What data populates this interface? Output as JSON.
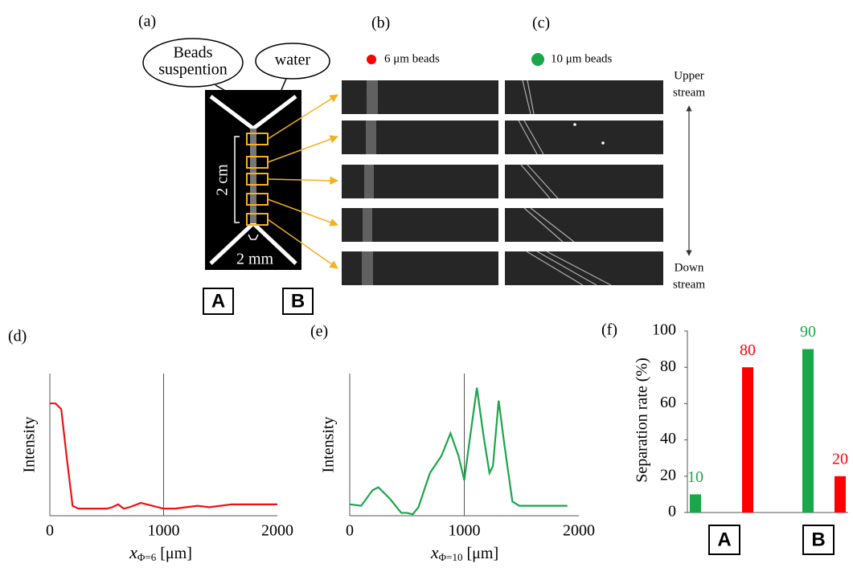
{
  "panel_labels": [
    "(a)",
    "(b)",
    "(c)",
    "(d)",
    "(e)",
    "(f)"
  ],
  "diagram": {
    "inlet_left": [
      "Beads",
      "suspention"
    ],
    "inlet_right": "water",
    "length": "2 cm",
    "width": "2 mm",
    "outlets": [
      "A",
      "B"
    ],
    "stream_top": [
      "Upper",
      "stream"
    ],
    "stream_bottom": [
      "Down",
      "stream"
    ]
  },
  "chart_data": [
    {
      "type": "line",
      "ylabel": "Intensity",
      "xlabel": {
        "main": "x",
        "sub": "Φ=6",
        "unit": "[μm]"
      },
      "x": [
        0,
        50,
        100,
        150,
        200,
        250,
        300,
        400,
        500,
        550,
        600,
        650,
        700,
        800,
        900,
        1000,
        1100,
        1200,
        1300,
        1400,
        1500,
        1600,
        1800,
        2000
      ],
      "values": [
        0.79,
        0.79,
        0.75,
        0.4,
        0.07,
        0.05,
        0.05,
        0.05,
        0.05,
        0.06,
        0.08,
        0.05,
        0.06,
        0.09,
        0.07,
        0.05,
        0.05,
        0.06,
        0.07,
        0.06,
        0.07,
        0.08,
        0.08,
        0.08
      ],
      "color": "#ee1111",
      "xlim": [
        0,
        2000
      ],
      "xticks": [
        0,
        1000,
        2000
      ],
      "ylim": [
        0,
        1
      ],
      "grid": true
    },
    {
      "type": "line",
      "ylabel": "Intensity",
      "xlabel": {
        "main": "x",
        "sub": "Φ=10",
        "unit": "[μm]"
      },
      "x": [
        0,
        100,
        200,
        250,
        350,
        450,
        500,
        550,
        600,
        700,
        800,
        880,
        950,
        1000,
        1050,
        1110,
        1170,
        1220,
        1250,
        1300,
        1350,
        1420,
        1480,
        1600,
        1900
      ],
      "values": [
        0.08,
        0.07,
        0.18,
        0.2,
        0.12,
        0.02,
        0.02,
        0.01,
        0.06,
        0.3,
        0.42,
        0.58,
        0.42,
        0.25,
        0.55,
        0.9,
        0.55,
        0.3,
        0.35,
        0.81,
        0.5,
        0.1,
        0.07,
        0.07,
        0.07
      ],
      "color": "#1aa64a",
      "xlim": [
        0,
        2000
      ],
      "xticks": [
        0,
        1000,
        2000
      ],
      "ylim": [
        0,
        1
      ],
      "grid": true
    },
    {
      "type": "bar",
      "ylabel": "Separation rate (%)",
      "categories": [
        "A",
        "B"
      ],
      "series": [
        {
          "name": "10 μm beads",
          "color": "#1aa64a",
          "values": [
            10,
            90
          ]
        },
        {
          "name": "6 μm beads",
          "color": "#ff0000",
          "values": [
            80,
            20
          ]
        }
      ],
      "ylim": [
        0,
        100
      ],
      "yticks": [
        0,
        20,
        40,
        60,
        80,
        100
      ]
    }
  ]
}
